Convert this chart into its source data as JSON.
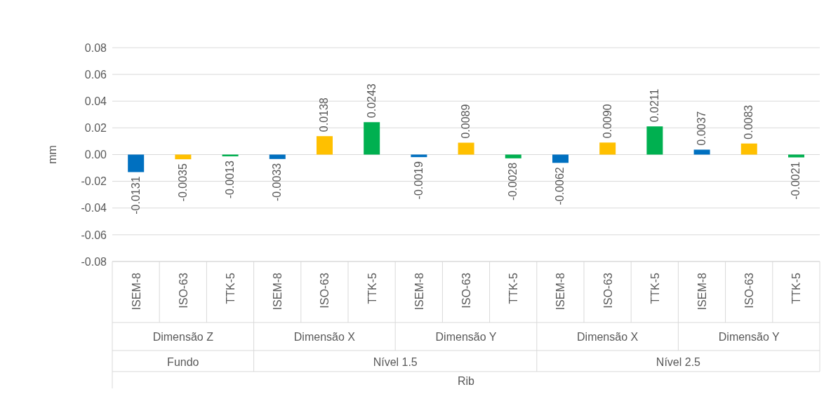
{
  "chart_data": {
    "type": "bar",
    "ylabel": "mm",
    "categories": [
      "ISEM-8",
      "ISO-63",
      "TTK-5",
      "ISEM-8",
      "ISO-63",
      "TTK-5",
      "ISEM-8",
      "ISO-63",
      "TTK-5",
      "ISEM-8",
      "ISO-63",
      "TTK-5",
      "ISEM-8",
      "ISO-63",
      "TTK-5"
    ],
    "values": [
      -0.0131,
      -0.0035,
      -0.0013,
      -0.0033,
      0.0138,
      0.0243,
      -0.0019,
      0.0089,
      -0.0028,
      -0.0062,
      0.009,
      0.0211,
      0.0037,
      0.0083,
      -0.0021
    ],
    "value_labels": [
      "-0.0131",
      "-0.0035",
      "-0.0013",
      "-0.0033",
      "0.0138",
      "0.0243",
      "-0.0019",
      "0.0089",
      "-0.0028",
      "-0.0062",
      "0.0090",
      "0.0211",
      "0.0037",
      "0.0083",
      "-0.0021"
    ],
    "colors": [
      "#0070c0",
      "#ffc000",
      "#00b050",
      "#0070c0",
      "#ffc000",
      "#00b050",
      "#0070c0",
      "#ffc000",
      "#00b050",
      "#0070c0",
      "#ffc000",
      "#00b050",
      "#0070c0",
      "#ffc000",
      "#00b050"
    ],
    "annotations": [
      "Dimensão Z",
      "Dimensão X",
      "Dimensão Y",
      "Dimensão X",
      "Dimensão Y",
      "Fundo",
      "Nível 1.5",
      "Nível 2.5",
      "Rib"
    ],
    "ylim": [
      -0.08,
      0.08
    ],
    "yticks": [
      {
        "value": -0.08,
        "label": "-0.08"
      },
      {
        "value": -0.06,
        "label": "-0.06"
      },
      {
        "value": -0.04,
        "label": "-0.04"
      },
      {
        "value": -0.02,
        "label": "-0.02"
      },
      {
        "value": 0,
        "label": "0.00"
      },
      {
        "value": 0.02,
        "label": "0.02"
      },
      {
        "value": 0.04,
        "label": "0.04"
      },
      {
        "value": 0.06,
        "label": "0.06"
      },
      {
        "value": 0.08,
        "label": "0.08"
      }
    ],
    "grid": "y",
    "legend": false
  }
}
